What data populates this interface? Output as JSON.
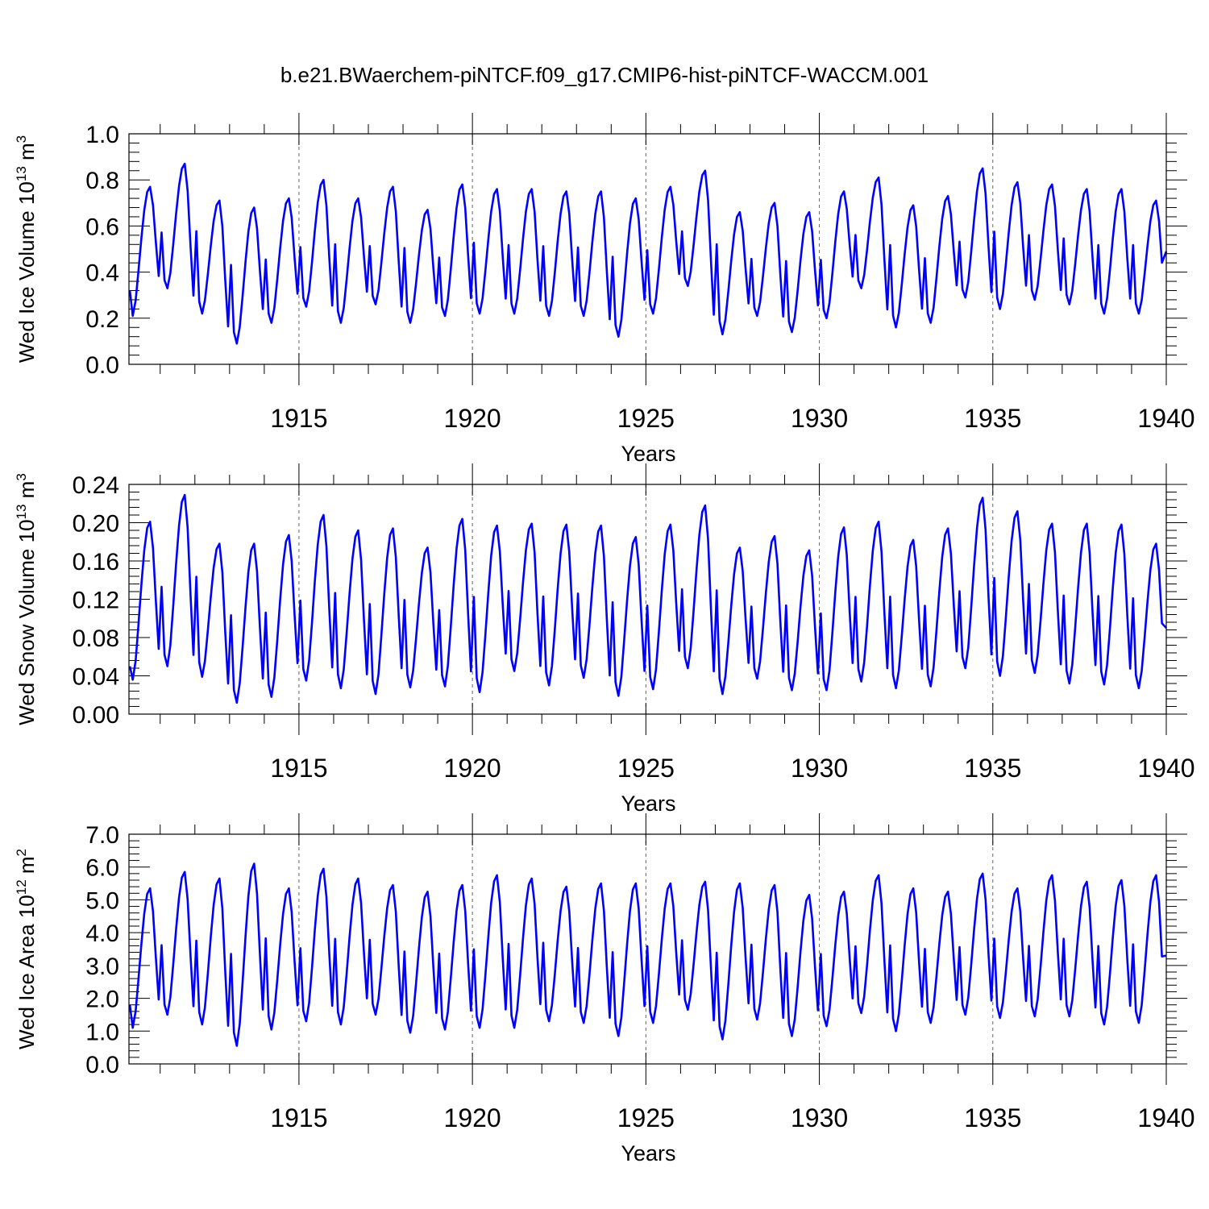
{
  "title": "b.e21.BWaerchem-piNTCF.f09_g17.CMIP6-hist-piNTCF-WACCM.001",
  "chart_data": [
    {
      "type": "line",
      "name": "ice-volume",
      "ylabel": "Wed Ice Volume 10",
      "ylabel_exp": "13",
      "ylabel_unit": " m",
      "ylabel_unit_exp": "3",
      "xlabel": "Years",
      "xlim": [
        1910.1,
        1940.0
      ],
      "ylim": [
        0.0,
        1.0
      ],
      "x_ticks": [
        1915,
        1920,
        1925,
        1930,
        1935,
        1940
      ],
      "x_tick_labels": [
        "1915",
        "1920",
        "1925",
        "1930",
        "1935",
        "1940"
      ],
      "y_ticks": [
        0.0,
        0.2,
        0.4,
        0.6,
        0.8,
        1.0
      ],
      "y_tick_labels": [
        "0.0",
        "0.2",
        "0.4",
        "0.6",
        "0.8",
        "1.0"
      ],
      "line_color": "#0000ff",
      "grid_color": "#666666",
      "start_value": 0.32,
      "end_value": 0.49,
      "series": [
        {
          "name": "maxima",
          "values": [
            0.77,
            0.87,
            0.71,
            0.68,
            0.72,
            0.8,
            0.72,
            0.77,
            0.67,
            0.78,
            0.76,
            0.76,
            0.75,
            0.75,
            0.72,
            0.77,
            0.84,
            0.66,
            0.7,
            0.66,
            0.75,
            0.81,
            0.69,
            0.73,
            0.85,
            0.79,
            0.78,
            0.76,
            0.76,
            0.71
          ]
        },
        {
          "name": "minima",
          "values": [
            0.21,
            0.33,
            0.22,
            0.09,
            0.18,
            0.25,
            0.18,
            0.26,
            0.18,
            0.21,
            0.22,
            0.22,
            0.21,
            0.21,
            0.12,
            0.22,
            0.34,
            0.13,
            0.21,
            0.14,
            0.2,
            0.33,
            0.16,
            0.18,
            0.29,
            0.24,
            0.28,
            0.26,
            0.22,
            0.22
          ]
        }
      ]
    },
    {
      "type": "line",
      "name": "snow-volume",
      "ylabel": "Wed Snow Volume 10",
      "ylabel_exp": "13",
      "ylabel_unit": " m",
      "ylabel_unit_exp": "3",
      "xlabel": "Years",
      "xlim": [
        1910.1,
        1940.0
      ],
      "ylim": [
        0.0,
        0.24
      ],
      "x_ticks": [
        1915,
        1920,
        1925,
        1930,
        1935,
        1940
      ],
      "x_tick_labels": [
        "1915",
        "1920",
        "1925",
        "1930",
        "1935",
        "1940"
      ],
      "y_ticks": [
        0.0,
        0.04,
        0.08,
        0.12,
        0.16,
        0.2,
        0.24
      ],
      "y_tick_labels": [
        "0.00",
        "0.04",
        "0.08",
        "0.12",
        "0.16",
        "0.20",
        "0.24"
      ],
      "line_color": "#0000ff",
      "grid_color": "#666666",
      "start_value": 0.05,
      "end_value": 0.09,
      "series": [
        {
          "name": "maxima",
          "values": [
            0.201,
            0.229,
            0.178,
            0.178,
            0.187,
            0.208,
            0.192,
            0.194,
            0.174,
            0.204,
            0.197,
            0.199,
            0.198,
            0.197,
            0.185,
            0.198,
            0.218,
            0.174,
            0.186,
            0.171,
            0.195,
            0.201,
            0.182,
            0.194,
            0.226,
            0.212,
            0.199,
            0.199,
            0.198,
            0.178
          ]
        },
        {
          "name": "minima",
          "values": [
            0.036,
            0.05,
            0.039,
            0.012,
            0.018,
            0.035,
            0.027,
            0.021,
            0.028,
            0.029,
            0.023,
            0.045,
            0.03,
            0.038,
            0.019,
            0.026,
            0.048,
            0.021,
            0.037,
            0.025,
            0.025,
            0.034,
            0.027,
            0.029,
            0.048,
            0.04,
            0.043,
            0.032,
            0.031,
            0.027
          ]
        }
      ]
    },
    {
      "type": "line",
      "name": "ice-area",
      "ylabel": "Wed Ice Area 10",
      "ylabel_exp": "12",
      "ylabel_unit": " m",
      "ylabel_unit_exp": "2",
      "xlabel": "Years",
      "xlim": [
        1910.1,
        1940.0
      ],
      "ylim": [
        0.0,
        7.0
      ],
      "x_ticks": [
        1915,
        1920,
        1925,
        1930,
        1935,
        1940
      ],
      "x_tick_labels": [
        "1915",
        "1920",
        "1925",
        "1930",
        "1935",
        "1940"
      ],
      "y_ticks": [
        0.0,
        1.0,
        2.0,
        3.0,
        4.0,
        5.0,
        6.0,
        7.0
      ],
      "y_tick_labels": [
        "0.0",
        "1.0",
        "2.0",
        "3.0",
        "4.0",
        "5.0",
        "6.0",
        "7.0"
      ],
      "line_color": "#0000ff",
      "grid_color": "#666666",
      "start_value": 1.8,
      "end_value": 3.3,
      "series": [
        {
          "name": "maxima",
          "values": [
            5.35,
            5.85,
            5.65,
            6.1,
            5.35,
            5.95,
            5.65,
            5.45,
            5.25,
            5.45,
            5.75,
            5.65,
            5.4,
            5.5,
            5.5,
            5.5,
            5.55,
            5.5,
            5.45,
            5.15,
            5.25,
            5.75,
            5.35,
            5.25,
            5.8,
            5.35,
            5.75,
            5.55,
            5.6,
            5.75
          ]
        },
        {
          "name": "minima",
          "values": [
            1.1,
            1.5,
            1.2,
            0.55,
            1.05,
            1.3,
            1.2,
            1.5,
            0.95,
            1.05,
            1.1,
            1.1,
            1.3,
            1.25,
            0.85,
            1.25,
            1.65,
            0.75,
            1.35,
            0.85,
            1.15,
            1.55,
            1.0,
            1.25,
            1.5,
            1.4,
            1.45,
            1.45,
            1.2,
            1.25
          ]
        }
      ]
    }
  ]
}
